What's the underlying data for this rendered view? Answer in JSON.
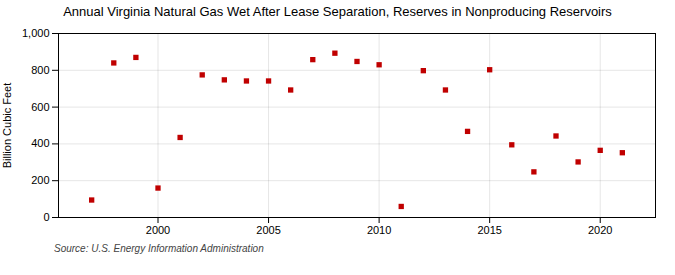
{
  "chart_data": {
    "type": "scatter",
    "title": "Annual Virginia Natural Gas Wet After Lease Separation, Reserves in Nonproducing Reservoirs",
    "ylabel": "Billion Cubic Feet",
    "source": "Source: U.S. Energy Information Administration",
    "x": [
      1997,
      1998,
      1999,
      2000,
      2001,
      2002,
      2003,
      2004,
      2005,
      2006,
      2007,
      2008,
      2009,
      2010,
      2011,
      2012,
      2013,
      2014,
      2015,
      2016,
      2017,
      2018,
      2019,
      2020,
      2021
    ],
    "values": [
      95,
      840,
      870,
      160,
      435,
      775,
      748,
      742,
      742,
      693,
      858,
      893,
      848,
      830,
      60,
      798,
      693,
      468,
      803,
      395,
      248,
      443,
      302,
      365,
      352
    ],
    "color": "#c00000",
    "marker": "square",
    "xlim": [
      1995.5,
      2022.5
    ],
    "xticks": [
      2000,
      2005,
      2010,
      2015,
      2020
    ],
    "ylim": [
      0,
      1000
    ],
    "yticks": [
      0,
      200,
      400,
      600,
      800,
      {
        "value": 1000,
        "label": "1,000"
      }
    ],
    "grid": true
  }
}
